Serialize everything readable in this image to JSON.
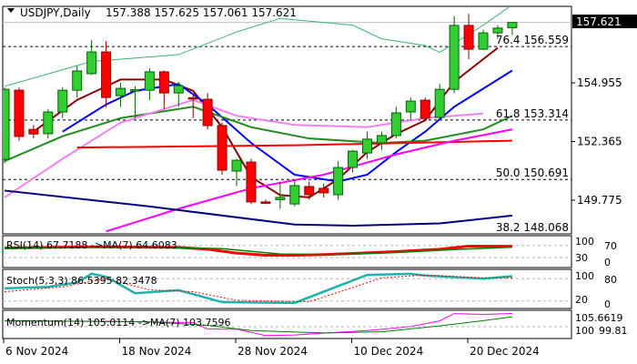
{
  "header": {
    "symbol_timeframe": "USDJPY,Daily",
    "ohlc": "157.388 157.625 157.061 157.621"
  },
  "colors": {
    "bull": "#32cd32",
    "bear": "#ff0000",
    "wick_bull": "#006400",
    "wick_bear": "#8b0000"
  },
  "chart_data": [
    {
      "type": "candlestick",
      "title": "USDJPY,Daily",
      "ylim": [
        148.29,
        158.29
      ],
      "y_ticks": [
        "154.955",
        "152.365",
        "149.775"
      ],
      "y_tick_values": [
        154.955,
        152.365,
        149.775
      ],
      "current_price": 157.621,
      "current_price_label": "157.621",
      "x_ticks": [
        {
          "label": "6 Nov 2024",
          "index": 0
        },
        {
          "label": "18 Nov 2024",
          "index": 8
        },
        {
          "label": "28 Nov 2024",
          "index": 16
        },
        {
          "label": "10 Dec 2024",
          "index": 24
        },
        {
          "label": "20 Dec 2024",
          "index": 32
        }
      ],
      "ohlc": [
        [
          151.58,
          154.75,
          151.4,
          154.67
        ],
        [
          154.63,
          154.75,
          152.4,
          152.59
        ],
        [
          152.9,
          153.1,
          152.5,
          152.7
        ],
        [
          152.71,
          153.8,
          152.5,
          153.67
        ],
        [
          153.67,
          154.75,
          153.4,
          154.63
        ],
        [
          154.63,
          155.7,
          154.3,
          155.48
        ],
        [
          155.36,
          156.85,
          155.3,
          156.32
        ],
        [
          156.32,
          156.8,
          153.87,
          154.31
        ],
        [
          154.39,
          154.95,
          153.9,
          154.71
        ],
        [
          154.63,
          154.8,
          153.4,
          154.65
        ],
        [
          154.63,
          155.6,
          154.2,
          155.44
        ],
        [
          155.44,
          155.5,
          153.8,
          154.51
        ],
        [
          154.51,
          155.0,
          153.9,
          154.83
        ],
        [
          154.3,
          154.4,
          153.4,
          154.27
        ],
        [
          154.23,
          154.5,
          152.9,
          153.07
        ],
        [
          153.07,
          153.2,
          150.9,
          151.1
        ],
        [
          151.06,
          151.6,
          150.4,
          151.54
        ],
        [
          151.46,
          151.6,
          149.6,
          149.7
        ],
        [
          149.7,
          149.8,
          149.6,
          149.65
        ],
        [
          149.8,
          150.6,
          149.4,
          149.9
        ],
        [
          149.61,
          150.7,
          149.5,
          150.42
        ],
        [
          150.38,
          150.6,
          149.8,
          150.02
        ],
        [
          150.3,
          150.5,
          149.9,
          150.1
        ],
        [
          150.02,
          151.5,
          149.8,
          151.22
        ],
        [
          151.22,
          152.0,
          151.0,
          151.94
        ],
        [
          151.86,
          152.8,
          151.6,
          152.47
        ],
        [
          152.3,
          152.8,
          152.0,
          152.63
        ],
        [
          152.63,
          153.9,
          152.5,
          153.63
        ],
        [
          153.67,
          154.3,
          153.3,
          154.15
        ],
        [
          154.19,
          154.3,
          153.3,
          153.39
        ],
        [
          153.43,
          154.9,
          153.3,
          154.67
        ],
        [
          154.67,
          157.9,
          154.5,
          157.49
        ],
        [
          157.49,
          158.0,
          156.0,
          156.44
        ],
        [
          156.44,
          157.3,
          156.4,
          157.16
        ],
        [
          157.16,
          157.5,
          156.9,
          157.37
        ],
        [
          157.388,
          157.625,
          157.061,
          157.621
        ]
      ],
      "fibonacci": [
        {
          "level": "76.4",
          "price": 156.559,
          "label": "76.4 156.559"
        },
        {
          "level": "61.8",
          "price": 153.314,
          "label": "61.8 153.314"
        },
        {
          "level": "50.0",
          "price": 150.691,
          "label": "50.0 150.691"
        },
        {
          "level": "38.2",
          "price": 148.068,
          "label": "38.2 148.068"
        }
      ],
      "overlays": [
        {
          "color": "#8b0000",
          "width": 2,
          "points": [
            [
              2,
              152.8
            ],
            [
              5,
              154.2
            ],
            [
              8,
              155.1
            ],
            [
              11,
              155.1
            ],
            [
              13,
              154.6
            ],
            [
              15,
              153.0
            ],
            [
              17,
              150.8
            ],
            [
              19,
              150.0
            ],
            [
              21,
              149.9
            ],
            [
              23,
              150.7
            ],
            [
              25,
              151.9
            ],
            [
              27,
              152.7
            ],
            [
              29,
              153.3
            ],
            [
              31,
              155.0
            ],
            [
              33,
              156.0
            ],
            [
              34,
              156.5
            ]
          ]
        },
        {
          "color": "#0000ff",
          "width": 2,
          "points": [
            [
              4,
              152.8
            ],
            [
              7,
              154.0
            ],
            [
              9,
              154.6
            ],
            [
              12,
              154.9
            ],
            [
              14,
              154.0
            ],
            [
              17,
              152.3
            ],
            [
              20,
              150.9
            ],
            [
              23,
              150.6
            ],
            [
              25,
              150.9
            ],
            [
              27,
              151.9
            ],
            [
              29,
              152.8
            ],
            [
              31,
              153.9
            ],
            [
              35,
              155.5
            ]
          ]
        },
        {
          "color": "#228b22",
          "width": 2,
          "points": [
            [
              0,
              151.5
            ],
            [
              4,
              152.6
            ],
            [
              8,
              153.4
            ],
            [
              13,
              153.9
            ],
            [
              17,
              153.0
            ],
            [
              21,
              152.5
            ],
            [
              26,
              152.3
            ],
            [
              29,
              152.4
            ],
            [
              33,
              152.9
            ],
            [
              35,
              153.5
            ]
          ]
        },
        {
          "color": "#ee82ee",
          "width": 2,
          "points": [
            [
              0,
              149.9
            ],
            [
              4,
              151.6
            ],
            [
              8,
              153.2
            ],
            [
              13,
              154.2
            ],
            [
              16,
              153.5
            ],
            [
              20,
              153.1
            ],
            [
              25,
              153.0
            ],
            [
              29,
              153.4
            ],
            [
              33,
              153.6
            ]
          ]
        },
        {
          "color": "#ff0000",
          "width": 2,
          "points": [
            [
              5,
              152.1
            ],
            [
              20,
              152.2
            ],
            [
              35,
              152.4
            ]
          ]
        },
        {
          "color": "#ff00ff",
          "width": 2,
          "points": [
            [
              7,
              148.4
            ],
            [
              12,
              149.4
            ],
            [
              17,
              150.3
            ],
            [
              22,
              150.9
            ],
            [
              27,
              151.8
            ],
            [
              31,
              152.4
            ],
            [
              35,
              152.9
            ]
          ]
        },
        {
          "color": "#000080",
          "width": 2,
          "points": [
            [
              0,
              150.2
            ],
            [
              10,
              149.5
            ],
            [
              20,
              148.7
            ],
            [
              24,
              148.65
            ],
            [
              30,
              148.75
            ],
            [
              35,
              149.1
            ]
          ]
        },
        {
          "color": "#3cb371",
          "width": 1,
          "points": [
            [
              0,
              154.8
            ],
            [
              6,
              155.9
            ],
            [
              12,
              156.2
            ],
            [
              16,
              157.2
            ],
            [
              19,
              157.8
            ],
            [
              24,
              157.5
            ],
            [
              26,
              156.9
            ],
            [
              29,
              156.6
            ],
            [
              30,
              156.3
            ],
            [
              33,
              157.5
            ],
            [
              35,
              158.4
            ]
          ]
        }
      ]
    },
    {
      "type": "line",
      "title": "RSI(14) 67.7188 ->MA(7) 64.6083",
      "ylim": [
        0,
        100
      ],
      "levels": [
        70,
        30
      ],
      "y_tick_labels": [
        "100",
        "70",
        "30",
        "0"
      ],
      "series": [
        {
          "color": "#ff0000",
          "width": 3,
          "points": [
            [
              0,
              62
            ],
            [
              6,
              66
            ],
            [
              12,
              64
            ],
            [
              14,
              58
            ],
            [
              16,
              45
            ],
            [
              18,
              38
            ],
            [
              20,
              38
            ],
            [
              22,
              40
            ],
            [
              24,
              44
            ],
            [
              27,
              50
            ],
            [
              30,
              58
            ],
            [
              32,
              68
            ],
            [
              35,
              67.7188
            ]
          ]
        },
        {
          "color": "#008000",
          "width": 1.5,
          "points": [
            [
              0,
              63
            ],
            [
              10,
              65
            ],
            [
              15,
              60
            ],
            [
              19,
              42
            ],
            [
              23,
              40
            ],
            [
              27,
              47
            ],
            [
              31,
              57
            ],
            [
              35,
              64.6083
            ]
          ]
        }
      ]
    },
    {
      "type": "line",
      "title": "Stoch(5,3,3) 86.5395 82.3478",
      "ylim": [
        0,
        100
      ],
      "levels": [
        80,
        20
      ],
      "y_tick_labels": [
        "100",
        "80",
        "20",
        "0"
      ],
      "series": [
        {
          "color": "#20b2aa",
          "width": 2.5,
          "points": [
            [
              0,
              54
            ],
            [
              3,
              58
            ],
            [
              5,
              70
            ],
            [
              6,
              93
            ],
            [
              7,
              85
            ],
            [
              9,
              41
            ],
            [
              12,
              49
            ],
            [
              15,
              17
            ],
            [
              20,
              15
            ],
            [
              25,
              90
            ],
            [
              28,
              93
            ],
            [
              29,
              88
            ],
            [
              33,
              80
            ],
            [
              35,
              86.5395
            ]
          ]
        },
        {
          "color": "#ff0000",
          "width": 1,
          "dash": true,
          "points": [
            [
              0,
              45
            ],
            [
              4,
              58
            ],
            [
              7,
              80
            ],
            [
              10,
              50
            ],
            [
              13,
              45
            ],
            [
              16,
              22
            ],
            [
              21,
              18
            ],
            [
              26,
              82
            ],
            [
              29,
              90
            ],
            [
              33,
              82
            ],
            [
              35,
              82.3478
            ]
          ]
        }
      ]
    },
    {
      "type": "line",
      "title": "Momentum(14) 105.0114 ->MA(7) 103.7596",
      "ylim": [
        95.8,
        105.9
      ],
      "levels": [
        100
      ],
      "y_tick_labels": [
        "105.6619",
        "100",
        "99.81"
      ],
      "series": [
        {
          "color": "#ff00ff",
          "width": 1,
          "points": [
            [
              0,
              102.2
            ],
            [
              8,
              102.0
            ],
            [
              13,
              101.5
            ],
            [
              14,
              99.1
            ],
            [
              16,
              99.0
            ],
            [
              18,
              96.6
            ],
            [
              20,
              96.8
            ],
            [
              22,
              97.5
            ],
            [
              25,
              98.5
            ],
            [
              28,
              100
            ],
            [
              30,
              102.2
            ],
            [
              31,
              105
            ],
            [
              33,
              104.7
            ],
            [
              35,
              105.0114
            ]
          ]
        },
        {
          "color": "#008000",
          "width": 1,
          "points": [
            [
              0,
              102.3
            ],
            [
              10,
              101.8
            ],
            [
              14,
              100.5
            ],
            [
              17,
              98.5
            ],
            [
              22,
              97.6
            ],
            [
              26,
              98.0
            ],
            [
              30,
              100.3
            ],
            [
              33,
              102.3
            ],
            [
              35,
              103.7596
            ]
          ]
        }
      ]
    }
  ]
}
